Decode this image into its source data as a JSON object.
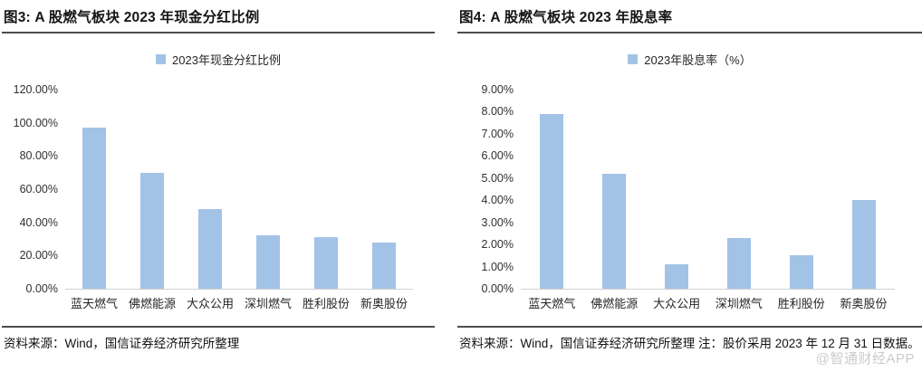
{
  "figures": [
    {
      "title": "图3: A 股燃气板块 2023 年现金分红比例",
      "legend": "2023年现金分红比例",
      "source": "资料来源：Wind，国信证券经济研究所整理"
    },
    {
      "title": "图4: A 股燃气板块 2023 年股息率",
      "legend": "2023年股息率（%）",
      "source": "资料来源：Wind，国信证券经济研究所整理 注：股价采用 2023 年 12 月 31 日数据。"
    }
  ],
  "watermark": "@智通财经APP",
  "colors": {
    "bar": "#a3c3e6",
    "axis_line": "#d2d2d2",
    "rule_line": "#4d4d4d",
    "watermark": "#cbcbcb"
  },
  "chart_data": [
    {
      "type": "bar",
      "title": "图3: A 股燃气板块 2023 年现金分红比例",
      "legend": [
        "2023年现金分红比例"
      ],
      "categories": [
        "蓝天燃气",
        "佛燃能源",
        "大众公用",
        "深圳燃气",
        "胜利股份",
        "新奥股份"
      ],
      "values": [
        97,
        70,
        48,
        32,
        31,
        28
      ],
      "unit": "%",
      "xlabel": "",
      "ylabel": "",
      "ylim": [
        0,
        120
      ],
      "ytick_step": 20,
      "ytick_labels": [
        "0.00%",
        "20.00%",
        "40.00%",
        "60.00%",
        "80.00%",
        "100.00%",
        "120.00%"
      ],
      "grid": false,
      "legend_position": "top"
    },
    {
      "type": "bar",
      "title": "图4: A 股燃气板块 2023 年股息率",
      "legend": [
        "2023年股息率（%）"
      ],
      "categories": [
        "蓝天燃气",
        "佛燃能源",
        "大众公用",
        "深圳燃气",
        "胜利股份",
        "新奥股份"
      ],
      "values": [
        7.9,
        5.2,
        1.1,
        2.3,
        1.5,
        4.0
      ],
      "unit": "%",
      "xlabel": "",
      "ylabel": "",
      "ylim": [
        0,
        9
      ],
      "ytick_step": 1,
      "ytick_labels": [
        "0.00%",
        "1.00%",
        "2.00%",
        "3.00%",
        "4.00%",
        "5.00%",
        "6.00%",
        "7.00%",
        "8.00%",
        "9.00%"
      ],
      "grid": false,
      "legend_position": "top"
    }
  ]
}
